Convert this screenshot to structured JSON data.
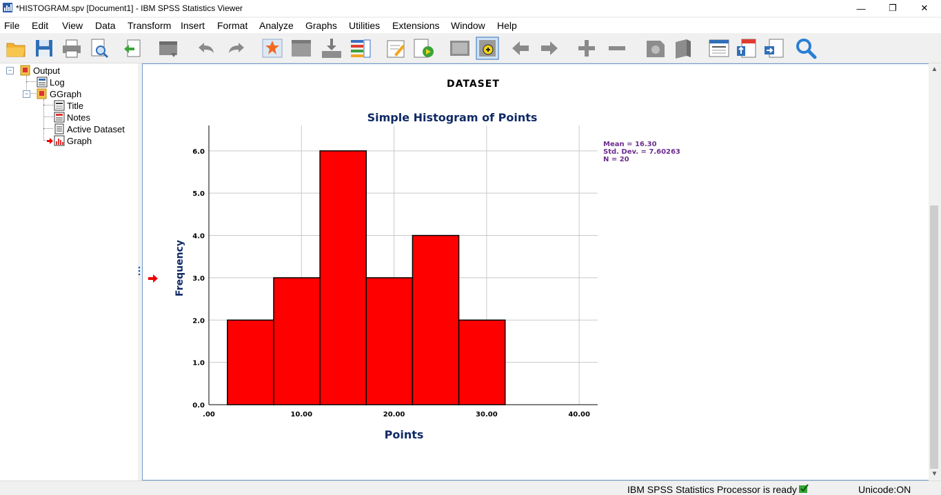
{
  "window": {
    "title": "*HISTOGRAM.spv [Document1] - IBM SPSS Statistics Viewer",
    "minimize": "—",
    "maximize": "❐",
    "close": "✕"
  },
  "menu": [
    {
      "label": "File"
    },
    {
      "label": "Edit"
    },
    {
      "label": "View"
    },
    {
      "label": "Data"
    },
    {
      "label": "Transform"
    },
    {
      "label": "Insert"
    },
    {
      "label": "Format"
    },
    {
      "label": "Analyze"
    },
    {
      "label": "Graphs"
    },
    {
      "label": "Utilities"
    },
    {
      "label": "Extensions"
    },
    {
      "label": "Window"
    },
    {
      "label": "Help"
    }
  ],
  "toolbar": {
    "icons": [
      "open-icon",
      "save-icon",
      "print-icon",
      "print-preview-icon",
      "export-icon",
      "recall-dialog-icon",
      "undo-icon",
      "redo-icon",
      "goto-case-icon",
      "goto-variable-icon",
      "insert-case-icon",
      "variables-icon",
      "designate-window-icon",
      "run-script-icon",
      "show-all-icon",
      "select-last-output-icon",
      "back-icon",
      "forward-icon",
      "expand-icon",
      "collapse-icon",
      "show-icon",
      "hide-icon",
      "insert-heading-icon",
      "insert-title-icon",
      "insert-text-icon",
      "search-icon"
    ]
  },
  "tree": {
    "items": [
      {
        "label": "Output"
      },
      {
        "label": "Log"
      },
      {
        "label": "GGraph"
      },
      {
        "label": "Title"
      },
      {
        "label": "Notes"
      },
      {
        "label": "Active Dataset"
      },
      {
        "label": "Graph"
      }
    ]
  },
  "output": {
    "heading": "DATASET"
  },
  "chart_data": {
    "type": "bar",
    "title": "Simple Histogram of Points",
    "xlabel": "Points",
    "ylabel": "Frequency",
    "bins": [
      [
        2,
        7
      ],
      [
        7,
        12
      ],
      [
        12,
        17
      ],
      [
        17,
        22
      ],
      [
        22,
        27
      ],
      [
        27,
        32
      ]
    ],
    "values": [
      2,
      3,
      6,
      3,
      4,
      2
    ],
    "xlim": [
      0,
      42
    ],
    "ylim": [
      0,
      6.6
    ],
    "xticks": [
      0,
      10,
      20,
      30,
      40
    ],
    "xtick_labels": [
      ".00",
      "10.00",
      "20.00",
      "30.00",
      "40.00"
    ],
    "yticks": [
      0,
      1,
      2,
      3,
      4,
      5,
      6
    ],
    "ytick_labels": [
      "0.0",
      "1.0",
      "2.0",
      "3.0",
      "4.0",
      "5.0",
      "6.0"
    ],
    "grid": true,
    "bar_color": "#ff0000",
    "stats": [
      "Mean = 16.30",
      "Std. Dev. = 7.60263",
      "N = 20"
    ],
    "stats_color": "#6b2d8f",
    "title_color": "#102a66"
  },
  "status": {
    "processor": "IBM SPSS Statistics Processor is ready",
    "unicode": "Unicode:ON"
  }
}
